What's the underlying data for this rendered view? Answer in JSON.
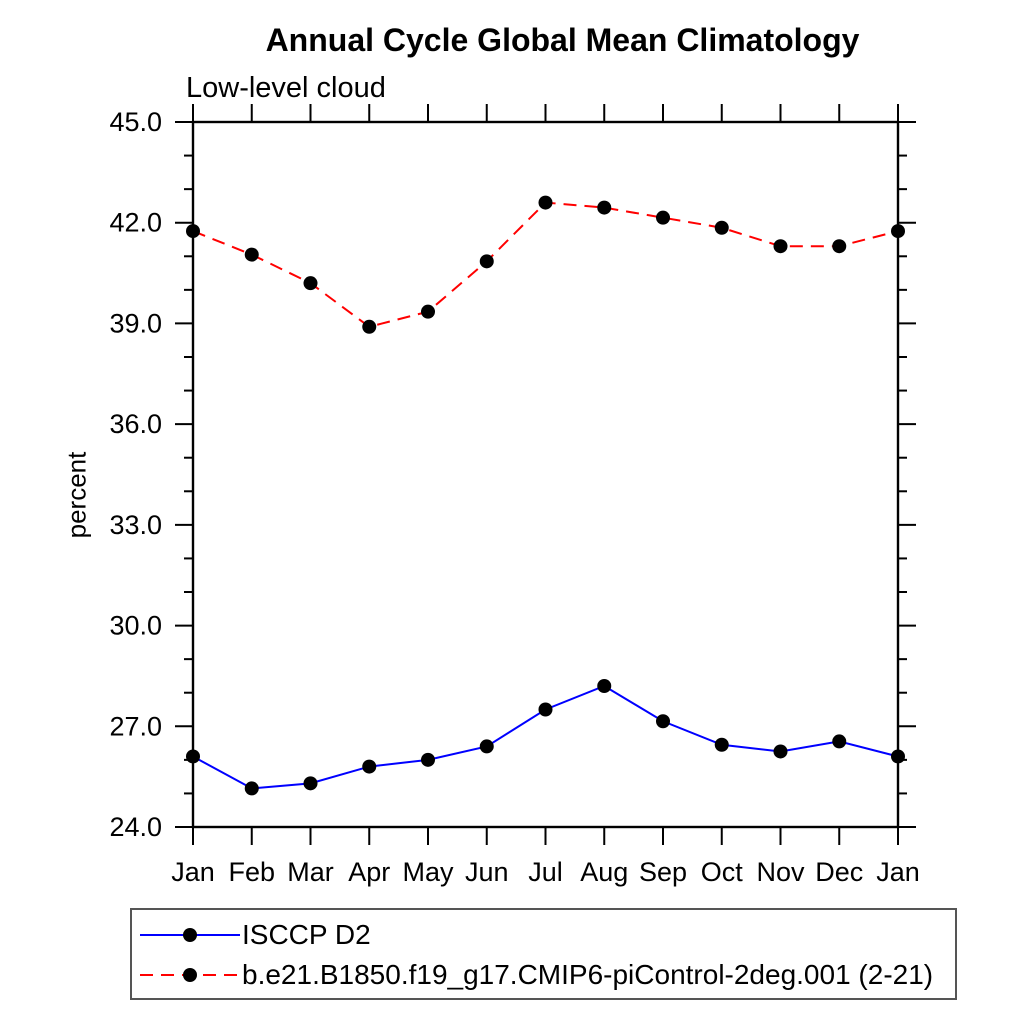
{
  "chart_data": {
    "type": "line",
    "title": "Annual Cycle Global Mean Climatology",
    "subtitle": "Low-level cloud",
    "ylabel": "percent",
    "xlabel": "",
    "ylim": [
      24.0,
      45.0
    ],
    "ytick_major_values": [
      45,
      42,
      39,
      36,
      33,
      30,
      27,
      24
    ],
    "ytick_major_labels": [
      "45.0",
      "42.0",
      "39.0",
      "36.0",
      "33.0",
      "30.0",
      "27.0",
      "24.0"
    ],
    "ytick_minor_step": 1,
    "categories": [
      "Jan",
      "Feb",
      "Mar",
      "Apr",
      "May",
      "Jun",
      "Jul",
      "Aug",
      "Sep",
      "Oct",
      "Nov",
      "Dec",
      "Jan"
    ],
    "grid": false,
    "legend_position": "bottom-left-box",
    "axis_color": "#000000",
    "series": [
      {
        "name": "ISCCP D2",
        "color": "#0000ff",
        "line_style": "solid",
        "marker": "filled-circle",
        "marker_color": "#000000",
        "values": [
          26.1,
          25.15,
          25.3,
          25.8,
          26.0,
          26.4,
          27.5,
          28.2,
          27.15,
          26.45,
          26.25,
          26.55,
          26.1
        ]
      },
      {
        "name": "b.e21.B1850.f19_g17.CMIP6-piControl-2deg.001 (2-21)",
        "color": "#ff0000",
        "line_style": "dashed",
        "marker": "filled-circle",
        "marker_color": "#000000",
        "values": [
          41.75,
          41.05,
          40.2,
          38.9,
          39.35,
          40.85,
          42.6,
          42.45,
          42.15,
          41.85,
          41.3,
          41.3,
          41.75
        ]
      }
    ]
  }
}
